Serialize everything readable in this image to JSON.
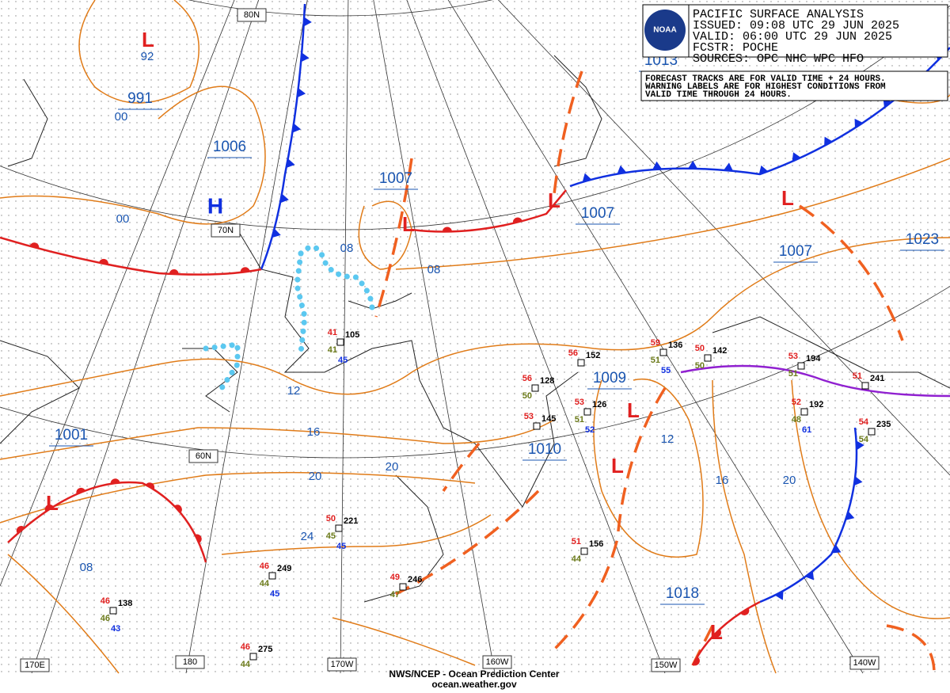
{
  "header": {
    "logo": "NOAA",
    "title": "PACIFIC SURFACE ANALYSIS",
    "issued": "ISSUED: 09:08 UTC 29 JUN 2025",
    "valid": "VALID:  06:00 UTC 29 JUN 2025",
    "forecaster": "FCSTR:  POCHE",
    "sources": "SOURCES: OPC NHC WPC HFO"
  },
  "note": [
    "FORECAST TRACKS ARE FOR VALID TIME + 24 HOURS.",
    "WARNING LABELS ARE FOR HIGHEST CONDITIONS FROM",
    "VALID TIME THROUGH 24 HOURS."
  ],
  "pressure_boxes": [
    "991",
    "1006",
    "1007",
    "1007",
    "1013",
    "1007",
    "1023",
    "1009",
    "1010",
    "1001",
    "1018"
  ],
  "isobar_labels": [
    "92",
    "00",
    "00",
    "08",
    "08",
    "12",
    "16",
    "20",
    "20",
    "24",
    "08",
    "12",
    "16",
    "20"
  ],
  "centers": [
    "L",
    "L",
    "L",
    "L",
    "L",
    "L",
    "L",
    "L",
    "H"
  ],
  "grid_labels": [
    "80N",
    "70N",
    "60N",
    "170E",
    "180",
    "170W",
    "160W",
    "150W",
    "140W"
  ],
  "stations": [
    {
      "id": "105",
      "temp": "41",
      "dew": "41",
      "other": "45"
    },
    {
      "id": "152",
      "temp": "56"
    },
    {
      "id": "128",
      "temp": "56",
      "dew": "50"
    },
    {
      "id": "145",
      "temp": "53"
    },
    {
      "id": "126",
      "temp": "53",
      "dew": "51",
      "other": "52"
    },
    {
      "id": "136",
      "temp": "59",
      "dew": "51",
      "other": "55"
    },
    {
      "id": "142",
      "temp": "50",
      "dew": "50"
    },
    {
      "id": "194",
      "temp": "53",
      "dew": "51"
    },
    {
      "id": "241",
      "temp": "51"
    },
    {
      "id": "192",
      "temp": "52",
      "dew": "48",
      "other": "61"
    },
    {
      "id": "235",
      "temp": "54",
      "dew": "54"
    },
    {
      "id": "221",
      "temp": "50",
      "dew": "45",
      "other": "45"
    },
    {
      "id": "249",
      "temp": "46",
      "dew": "44",
      "other": "45"
    },
    {
      "id": "246",
      "temp": "49",
      "dew": "47"
    },
    {
      "id": "156",
      "temp": "51",
      "dew": "44"
    },
    {
      "id": "138",
      "temp": "46",
      "dew": "46",
      "other": "43"
    },
    {
      "id": "275",
      "temp": "46",
      "dew": "44"
    }
  ],
  "footer": {
    "agency": "NWS/NCEP - Ocean Prediction Center",
    "url": "ocean.weather.gov"
  }
}
